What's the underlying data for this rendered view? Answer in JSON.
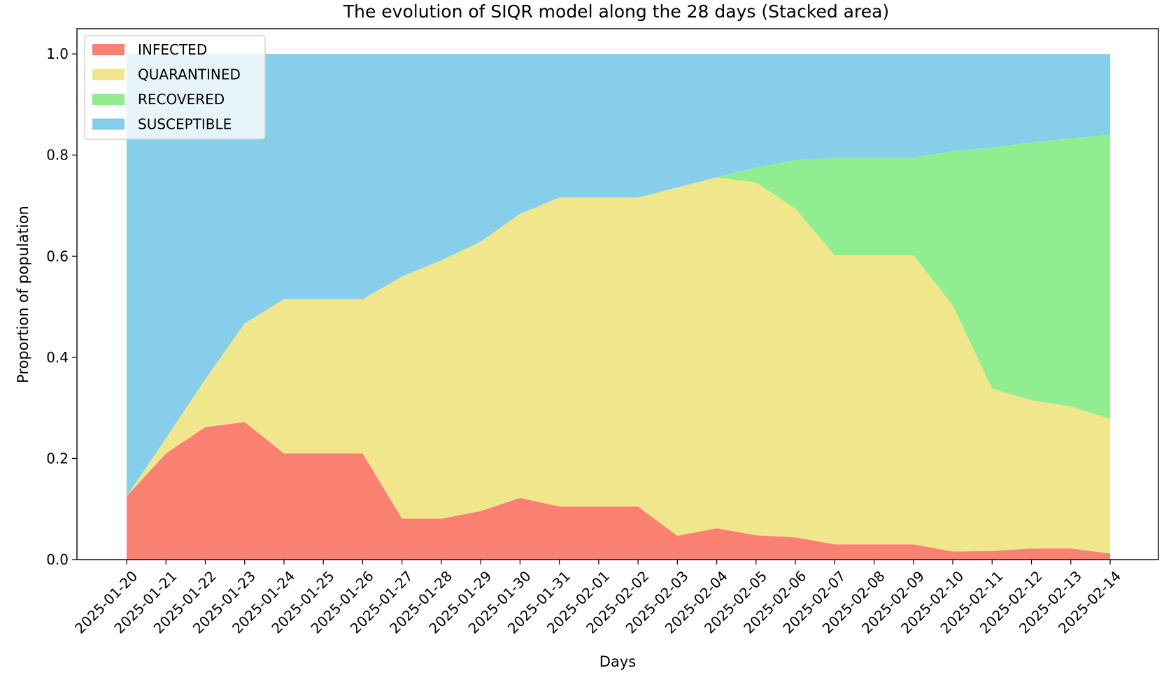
{
  "chart_data": {
    "type": "area",
    "stacked": true,
    "title": "The evolution of SIQR model along the 28 days (Stacked area)",
    "xlabel": "Days",
    "ylabel": "Proportion of population",
    "ylim": [
      0,
      1.05
    ],
    "y_ticks": [
      0.0,
      0.2,
      0.4,
      0.6,
      0.8,
      1.0
    ],
    "y_tick_labels": [
      "0.0",
      "0.2",
      "0.4",
      "0.6",
      "0.8",
      "1.0"
    ],
    "grid": false,
    "legend_position": "top-left",
    "categories": [
      "2025-01-20",
      "2025-01-21",
      "2025-01-22",
      "2025-01-23",
      "2025-01-24",
      "2025-01-25",
      "2025-01-26",
      "2025-01-27",
      "2025-01-28",
      "2025-01-29",
      "2025-01-30",
      "2025-01-31",
      "2025-02-01",
      "2025-02-02",
      "2025-02-03",
      "2025-02-04",
      "2025-02-05",
      "2025-02-06",
      "2025-02-07",
      "2025-02-08",
      "2025-02-09",
      "2025-02-10",
      "2025-02-11",
      "2025-02-12",
      "2025-02-13",
      "2025-02-14"
    ],
    "series": [
      {
        "name": "INFECTED",
        "color": "#fa8072",
        "values": [
          0.125,
          0.21,
          0.262,
          0.272,
          0.21,
          0.21,
          0.21,
          0.081,
          0.081,
          0.096,
          0.122,
          0.105,
          0.105,
          0.105,
          0.047,
          0.062,
          0.048,
          0.044,
          0.03,
          0.03,
          0.03,
          0.016,
          0.017,
          0.022,
          0.022,
          0.012
        ]
      },
      {
        "name": "QUARANTINED",
        "color": "#f0e68c",
        "values": [
          0.0,
          0.03,
          0.095,
          0.195,
          0.305,
          0.305,
          0.305,
          0.479,
          0.511,
          0.533,
          0.562,
          0.611,
          0.611,
          0.611,
          0.689,
          0.694,
          0.698,
          0.65,
          0.572,
          0.572,
          0.572,
          0.487,
          0.321,
          0.293,
          0.281,
          0.266
        ]
      },
      {
        "name": "RECOVERED",
        "color": "#90ee90",
        "values": [
          0.0,
          0.0,
          0.0,
          0.0,
          0.0,
          0.0,
          0.0,
          0.0,
          0.0,
          0.0,
          0.0,
          0.0,
          0.0,
          0.0,
          0.0,
          0.0,
          0.029,
          0.096,
          0.193,
          0.193,
          0.193,
          0.305,
          0.477,
          0.51,
          0.53,
          0.562
        ]
      },
      {
        "name": "SUSCEPTIBLE",
        "color": "#87ceeb",
        "values": [
          0.875,
          0.76,
          0.643,
          0.533,
          0.485,
          0.485,
          0.485,
          0.44,
          0.408,
          0.371,
          0.316,
          0.284,
          0.284,
          0.284,
          0.264,
          0.244,
          0.225,
          0.21,
          0.205,
          0.205,
          0.205,
          0.192,
          0.185,
          0.175,
          0.167,
          0.16
        ]
      }
    ]
  }
}
